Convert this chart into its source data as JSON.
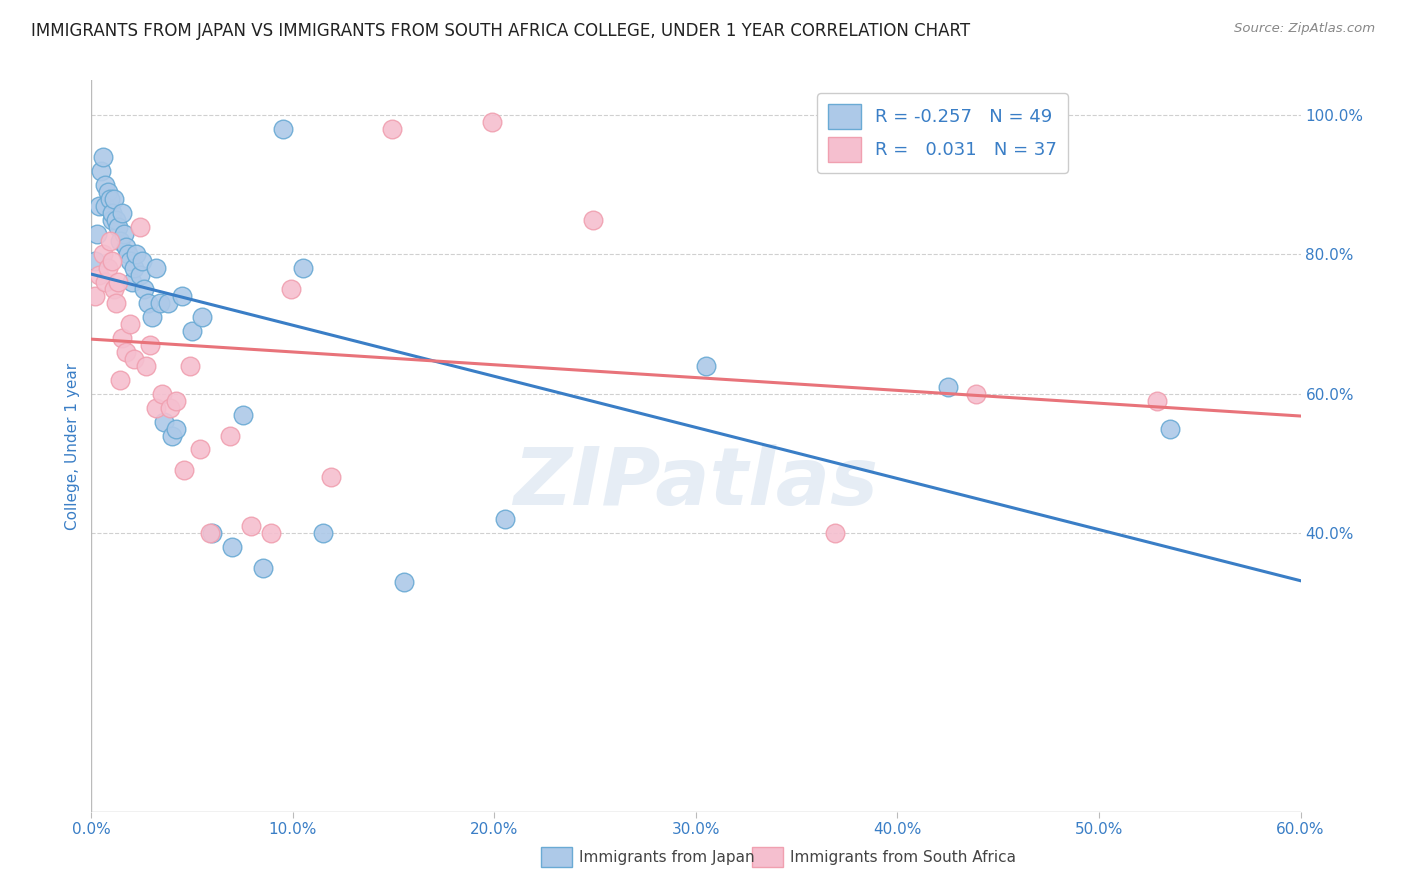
{
  "title": "IMMIGRANTS FROM JAPAN VS IMMIGRANTS FROM SOUTH AFRICA COLLEGE, UNDER 1 YEAR CORRELATION CHART",
  "source": "Source: ZipAtlas.com",
  "ylabel": "College, Under 1 year",
  "legend_japan": "Immigrants from Japan",
  "legend_sa": "Immigrants from South Africa",
  "R_japan": "-0.257",
  "N_japan": "49",
  "R_sa": "0.031",
  "N_sa": "37",
  "color_japan": "#adc9e8",
  "color_sa": "#f5bfcf",
  "color_japan_line": "#3a7ec6",
  "color_sa_line": "#e8737a",
  "color_japan_edge": "#6aaad4",
  "color_sa_edge": "#f0a0b0",
  "xlim": [
    0.0,
    0.6
  ],
  "ylim": [
    0.0,
    1.05
  ],
  "japan_x": [
    0.002,
    0.003,
    0.004,
    0.005,
    0.006,
    0.007,
    0.007,
    0.008,
    0.009,
    0.01,
    0.01,
    0.011,
    0.012,
    0.013,
    0.014,
    0.015,
    0.016,
    0.017,
    0.018,
    0.019,
    0.02,
    0.021,
    0.022,
    0.024,
    0.025,
    0.026,
    0.028,
    0.03,
    0.032,
    0.034,
    0.036,
    0.038,
    0.04,
    0.042,
    0.045,
    0.05,
    0.055,
    0.06,
    0.07,
    0.075,
    0.085,
    0.095,
    0.105,
    0.115,
    0.155,
    0.205,
    0.305,
    0.425,
    0.535
  ],
  "japan_y": [
    0.79,
    0.83,
    0.87,
    0.92,
    0.94,
    0.9,
    0.87,
    0.89,
    0.88,
    0.85,
    0.86,
    0.88,
    0.85,
    0.84,
    0.82,
    0.86,
    0.83,
    0.81,
    0.8,
    0.79,
    0.76,
    0.78,
    0.8,
    0.77,
    0.79,
    0.75,
    0.73,
    0.71,
    0.78,
    0.73,
    0.56,
    0.73,
    0.54,
    0.55,
    0.74,
    0.69,
    0.71,
    0.4,
    0.38,
    0.57,
    0.35,
    0.98,
    0.78,
    0.4,
    0.33,
    0.42,
    0.64,
    0.61,
    0.55
  ],
  "sa_x": [
    0.002,
    0.004,
    0.006,
    0.007,
    0.008,
    0.009,
    0.01,
    0.011,
    0.012,
    0.013,
    0.014,
    0.015,
    0.017,
    0.019,
    0.021,
    0.024,
    0.027,
    0.029,
    0.032,
    0.035,
    0.039,
    0.042,
    0.046,
    0.049,
    0.054,
    0.059,
    0.069,
    0.079,
    0.089,
    0.099,
    0.119,
    0.149,
    0.199,
    0.249,
    0.369,
    0.439,
    0.529
  ],
  "sa_y": [
    0.74,
    0.77,
    0.8,
    0.76,
    0.78,
    0.82,
    0.79,
    0.75,
    0.73,
    0.76,
    0.62,
    0.68,
    0.66,
    0.7,
    0.65,
    0.84,
    0.64,
    0.67,
    0.58,
    0.6,
    0.58,
    0.59,
    0.49,
    0.64,
    0.52,
    0.4,
    0.54,
    0.41,
    0.4,
    0.75,
    0.48,
    0.98,
    0.99,
    0.85,
    0.4,
    0.6,
    0.59
  ],
  "background_color": "#ffffff",
  "grid_color": "#d0d0d0",
  "title_color": "#222222",
  "axis_color": "#3a7ec6",
  "watermark": "ZIPatlas"
}
